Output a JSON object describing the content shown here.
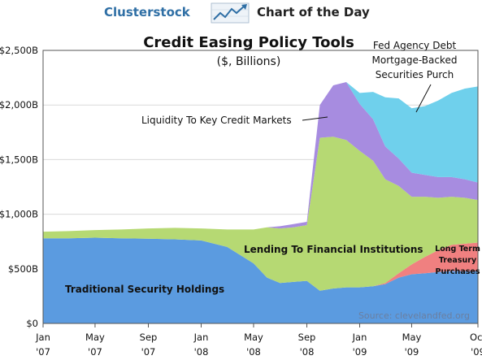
{
  "banner": {
    "brand": "Clusterstock",
    "subtitle": "Chart of the Day",
    "logo_icon": "trend-chart-icon",
    "brand_color": "#2f6fa5"
  },
  "chart_data": {
    "type": "area",
    "stacked": true,
    "title": "Credit Easing Policy Tools",
    "subtitle": "($, Billions)",
    "source": "Source: clevelandfed.org",
    "y_ticks": [
      "$0",
      "$500B",
      "$1,000B",
      "$1,500B",
      "$2,000B",
      "$2,500B"
    ],
    "x_ticks": [
      {
        "month": "Jan",
        "year": "'07"
      },
      {
        "month": "May",
        "year": "'07"
      },
      {
        "month": "Sep",
        "year": "'07"
      },
      {
        "month": "Jan",
        "year": "'08"
      },
      {
        "month": "May",
        "year": "'08"
      },
      {
        "month": "Sep",
        "year": "'08"
      },
      {
        "month": "Jan",
        "year": "'09"
      },
      {
        "month": "May",
        "year": "'09"
      },
      {
        "month": "Oct",
        "year": "'09"
      }
    ],
    "ylim": [
      0,
      2500
    ],
    "x": [
      "2007-01",
      "2007-03",
      "2007-05",
      "2007-07",
      "2007-09",
      "2007-11",
      "2008-01",
      "2008-03",
      "2008-05",
      "2008-06",
      "2008-07",
      "2008-08",
      "2008-09",
      "2008-10",
      "2008-11",
      "2008-12",
      "2009-01",
      "2009-02",
      "2009-03",
      "2009-04",
      "2009-05",
      "2009-06",
      "2009-07",
      "2009-08",
      "2009-09",
      "2009-10"
    ],
    "series": [
      {
        "name": "Traditional Security Holdings",
        "color": "#5b9be0",
        "values": [
          780,
          780,
          785,
          780,
          775,
          770,
          760,
          700,
          550,
          420,
          370,
          380,
          390,
          300,
          320,
          330,
          330,
          340,
          360,
          420,
          450,
          460,
          470,
          480,
          480,
          480
        ]
      },
      {
        "name": "Long Term Treasury Purchases",
        "color": "#f08080",
        "values": [
          0,
          0,
          0,
          0,
          0,
          0,
          0,
          0,
          0,
          0,
          0,
          0,
          0,
          0,
          0,
          0,
          0,
          0,
          10,
          40,
          90,
          150,
          200,
          240,
          250,
          260
        ]
      },
      {
        "name": "Lending To Financial Institutions",
        "color": "#b6d973",
        "values": [
          60,
          65,
          70,
          80,
          95,
          105,
          110,
          160,
          310,
          460,
          500,
          500,
          510,
          1400,
          1390,
          1350,
          1250,
          1150,
          950,
          800,
          620,
          550,
          480,
          440,
          420,
          390
        ]
      },
      {
        "name": "Liquidity To Key Credit Markets",
        "color": "#a78ce0",
        "values": [
          0,
          0,
          0,
          0,
          0,
          0,
          0,
          0,
          0,
          0,
          20,
          30,
          30,
          300,
          470,
          530,
          430,
          380,
          300,
          250,
          220,
          200,
          190,
          180,
          170,
          160
        ]
      },
      {
        "name": "Fed Agency Debt Mortgage-Backed Securities Purch",
        "color": "#6fd0ec",
        "values": [
          0,
          0,
          0,
          0,
          0,
          0,
          0,
          0,
          0,
          0,
          0,
          0,
          0,
          0,
          0,
          0,
          100,
          250,
          450,
          550,
          590,
          630,
          700,
          770,
          830,
          880
        ]
      }
    ],
    "annotations": {
      "traditional": "Traditional Security Holdings",
      "lending": "Lending To Financial Institutions",
      "liquidity": "Liquidity To Key Credit Markets",
      "fed_agency": [
        "Fed Agency Debt",
        "Mortgage-Backed",
        "Securities Purch"
      ],
      "long_term": [
        "Long Term",
        "Treasury",
        "Purchases"
      ]
    }
  }
}
